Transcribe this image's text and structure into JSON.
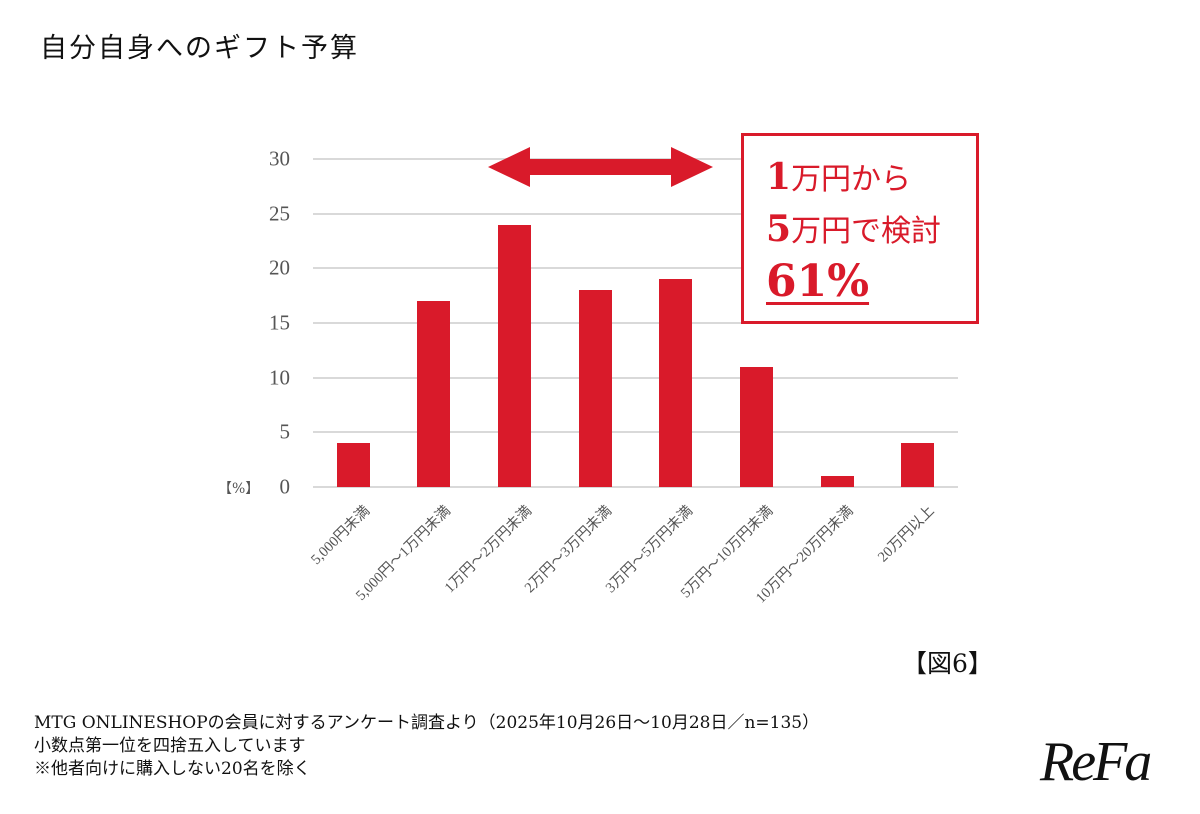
{
  "page": {
    "title": "自分自身へのギフト予算",
    "figure_label": "【図6】",
    "logo": "ReFa",
    "notes": [
      "MTG ONLINESHOPの会員に対するアンケート調査より（2025年10月26日〜10月28日／n=135）",
      "小数点第一位を四捨五入しています",
      "※他者向けに購入しない20名を除く"
    ]
  },
  "callout": {
    "line1_num": "1",
    "line1_text": "万円から",
    "line2_num": "5",
    "line2_text": "万円で検討",
    "value": "61%",
    "border_color": "#d91a2a"
  },
  "colors": {
    "bar": "#d91a2a",
    "grid": "#d9d9d9",
    "axis_text": "#555555"
  },
  "chart_data": {
    "type": "bar",
    "title": "自分自身へのギフト予算",
    "xlabel": "",
    "ylabel": "【%】",
    "ylim": [
      0,
      30
    ],
    "yticks": [
      0,
      5,
      10,
      15,
      20,
      25,
      30
    ],
    "grid": true,
    "legend": null,
    "categories": [
      "5,000円未満",
      "5,000円〜1万円未満",
      "1万円〜2万円未満",
      "2万円〜3万円未満",
      "3万円〜5万円未満",
      "5万円〜10万円未満",
      "10万円〜20万円未満",
      "20万円以上"
    ],
    "values": [
      4,
      17,
      24,
      18,
      19,
      11,
      1,
      4
    ],
    "annotations": [
      {
        "type": "double-arrow",
        "span": [
          "1万円〜2万円未満",
          "3万円〜5万円未満"
        ]
      },
      {
        "type": "callout",
        "text": "1万円から5万円で検討 61%"
      }
    ]
  }
}
